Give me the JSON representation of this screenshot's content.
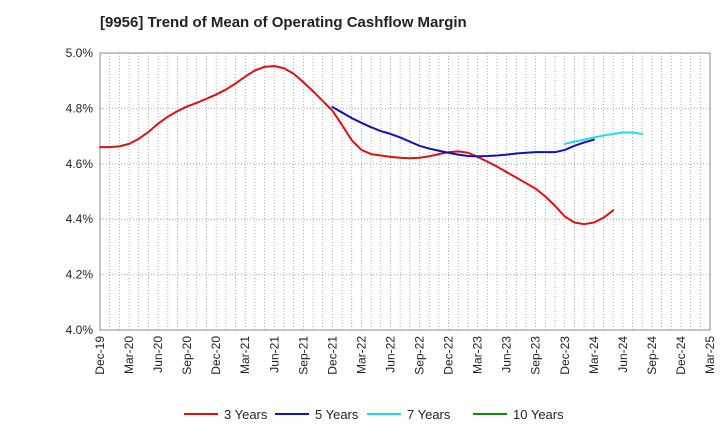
{
  "chart_data": {
    "type": "line",
    "title": "[9956]  Trend of Mean of Operating Cashflow Margin",
    "xlabel": "",
    "ylabel": "",
    "x_tick_labels": [
      "Dec-19",
      "Mar-20",
      "Jun-20",
      "Sep-20",
      "Dec-20",
      "Mar-21",
      "Jun-21",
      "Sep-21",
      "Dec-21",
      "Mar-22",
      "Jun-22",
      "Sep-22",
      "Dec-22",
      "Mar-23",
      "Jun-23",
      "Sep-23",
      "Dec-23",
      "Mar-24",
      "Jun-24",
      "Sep-24",
      "Dec-24",
      "Mar-25"
    ],
    "y_tick_labels": [
      "5.0%",
      "4.8%",
      "4.6%",
      "4.4%",
      "4.2%",
      "4.0%"
    ],
    "y_ticks": [
      5.0,
      4.8,
      4.6,
      4.4,
      4.2,
      4.0
    ],
    "ylim": [
      4.0,
      5.0
    ],
    "x_months_total": 63,
    "grid": true,
    "legend_position": "bottom",
    "series": [
      {
        "name": "3 Years",
        "color": "#dd1111",
        "start_month": 0,
        "values": [
          4.66,
          4.66,
          4.663,
          4.672,
          4.69,
          4.715,
          4.745,
          4.77,
          4.79,
          4.807,
          4.82,
          4.835,
          4.85,
          4.868,
          4.89,
          4.915,
          4.937,
          4.95,
          4.953,
          4.945,
          4.925,
          4.895,
          4.862,
          4.827,
          4.792,
          4.74,
          4.685,
          4.65,
          4.635,
          4.63,
          4.625,
          4.622,
          4.62,
          4.622,
          4.627,
          4.635,
          4.642,
          4.645,
          4.64,
          4.625,
          4.608,
          4.59,
          4.57,
          4.55,
          4.53,
          4.51,
          4.482,
          4.448,
          4.41,
          4.388,
          4.382,
          4.388,
          4.405,
          4.432
        ]
      },
      {
        "name": "5 Years",
        "color": "#1111bb",
        "start_month": 24,
        "values": [
          4.805,
          4.785,
          4.765,
          4.748,
          4.732,
          4.718,
          4.708,
          4.695,
          4.68,
          4.665,
          4.655,
          4.647,
          4.64,
          4.633,
          4.628,
          4.627,
          4.628,
          4.63,
          4.633,
          4.637,
          4.64,
          4.642,
          4.642,
          4.642,
          4.65,
          4.665,
          4.677,
          4.687
        ]
      },
      {
        "name": "7 Years",
        "color": "#22dddd",
        "start_month": 48,
        "values": [
          4.672,
          4.68,
          4.687,
          4.695,
          4.702,
          4.708,
          4.713,
          4.713,
          4.708
        ]
      },
      {
        "name": "10 Years",
        "color": "#118811",
        "start_month": 0,
        "values": []
      }
    ]
  }
}
